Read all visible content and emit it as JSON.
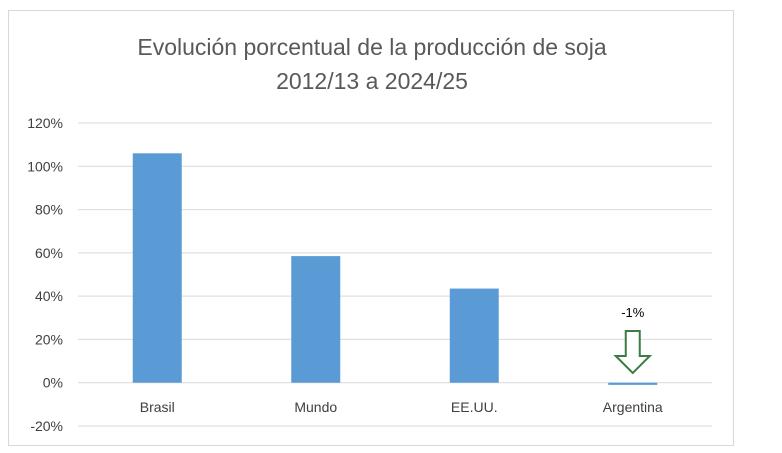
{
  "chart_data": {
    "type": "bar",
    "title": "Evolución porcentual de la producción de soja",
    "subtitle": "2012/13 a 2024/25",
    "categories": [
      "Brasil",
      "Mundo",
      "EE.UU.",
      "Argentina"
    ],
    "values": [
      106,
      58.5,
      43.5,
      -1
    ],
    "ylim": [
      -20,
      120
    ],
    "yticks": [
      "-20%",
      "0%",
      "20%",
      "40%",
      "60%",
      "80%",
      "100%",
      "120%"
    ],
    "ytick_values": [
      -20,
      0,
      20,
      40,
      60,
      80,
      100,
      120
    ],
    "grid": true,
    "annotation": {
      "text": "-1%",
      "category": "Argentina",
      "icon": "down-arrow-outline-icon"
    },
    "colors": {
      "bar": "#5b9bd5",
      "grid": "#d9d9d9",
      "arrow": "#3a7d44"
    }
  }
}
